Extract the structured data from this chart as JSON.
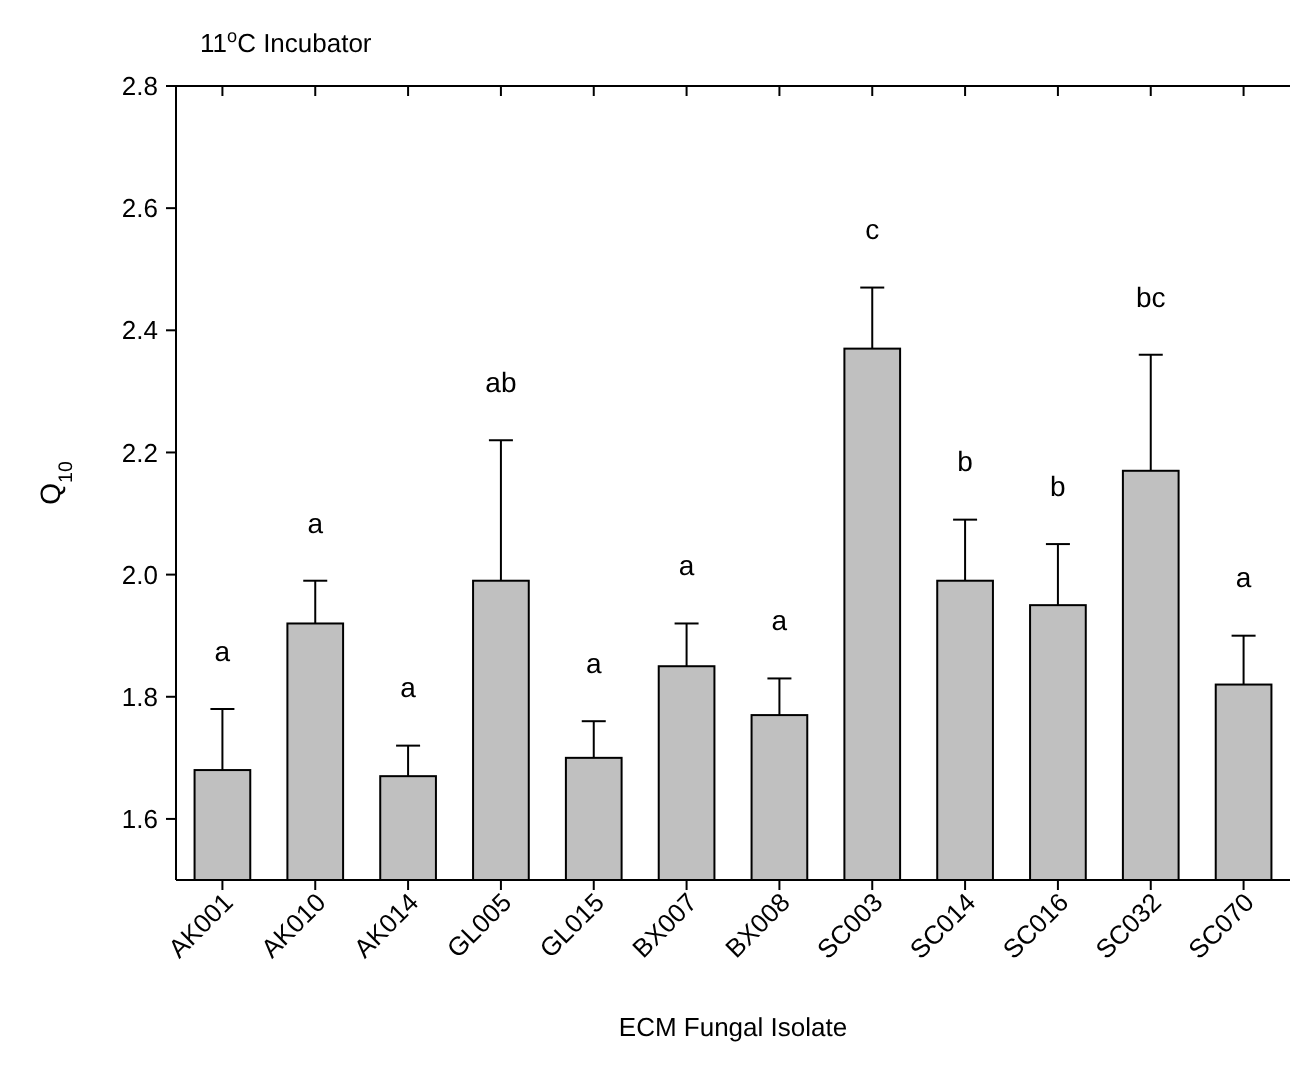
{
  "chart_data": {
    "type": "bar",
    "title": "11$^{o}$C Incubator",
    "xlabel": "ECM Fungal Isolate",
    "ylabel": "Q$_{10}$",
    "categories": [
      "AK001",
      "AK010",
      "AK014",
      "GL005",
      "GL015",
      "BX007",
      "BX008",
      "SC003",
      "SC014",
      "SC016",
      "SC032",
      "SC070"
    ],
    "values": [
      1.68,
      1.92,
      1.67,
      1.99,
      1.7,
      1.85,
      1.77,
      2.37,
      1.99,
      1.95,
      2.17,
      1.82
    ],
    "errors": [
      [
        1.68,
        1.78
      ],
      [
        1.92,
        1.99
      ],
      [
        1.67,
        1.72
      ],
      [
        1.99,
        2.22
      ],
      [
        1.7,
        1.76
      ],
      [
        1.85,
        1.92
      ],
      [
        1.77,
        1.83
      ],
      [
        2.37,
        2.47
      ],
      [
        1.99,
        2.09
      ],
      [
        1.95,
        2.05
      ],
      [
        2.17,
        2.36
      ],
      [
        1.82,
        1.9
      ]
    ],
    "color": "#c0c0c0",
    "ylim": [
      1.5,
      2.8
    ],
    "yticks": [
      1.6,
      1.8,
      {
        "value": 2.0,
        "label": "2.0"
      },
      2.2,
      2.4,
      2.6,
      2.8
    ],
    "grid": false,
    "annotations": [
      "a",
      "a",
      "a",
      "ab",
      "a",
      "a",
      "a",
      "c",
      "b",
      "b",
      "bc",
      "a"
    ]
  }
}
